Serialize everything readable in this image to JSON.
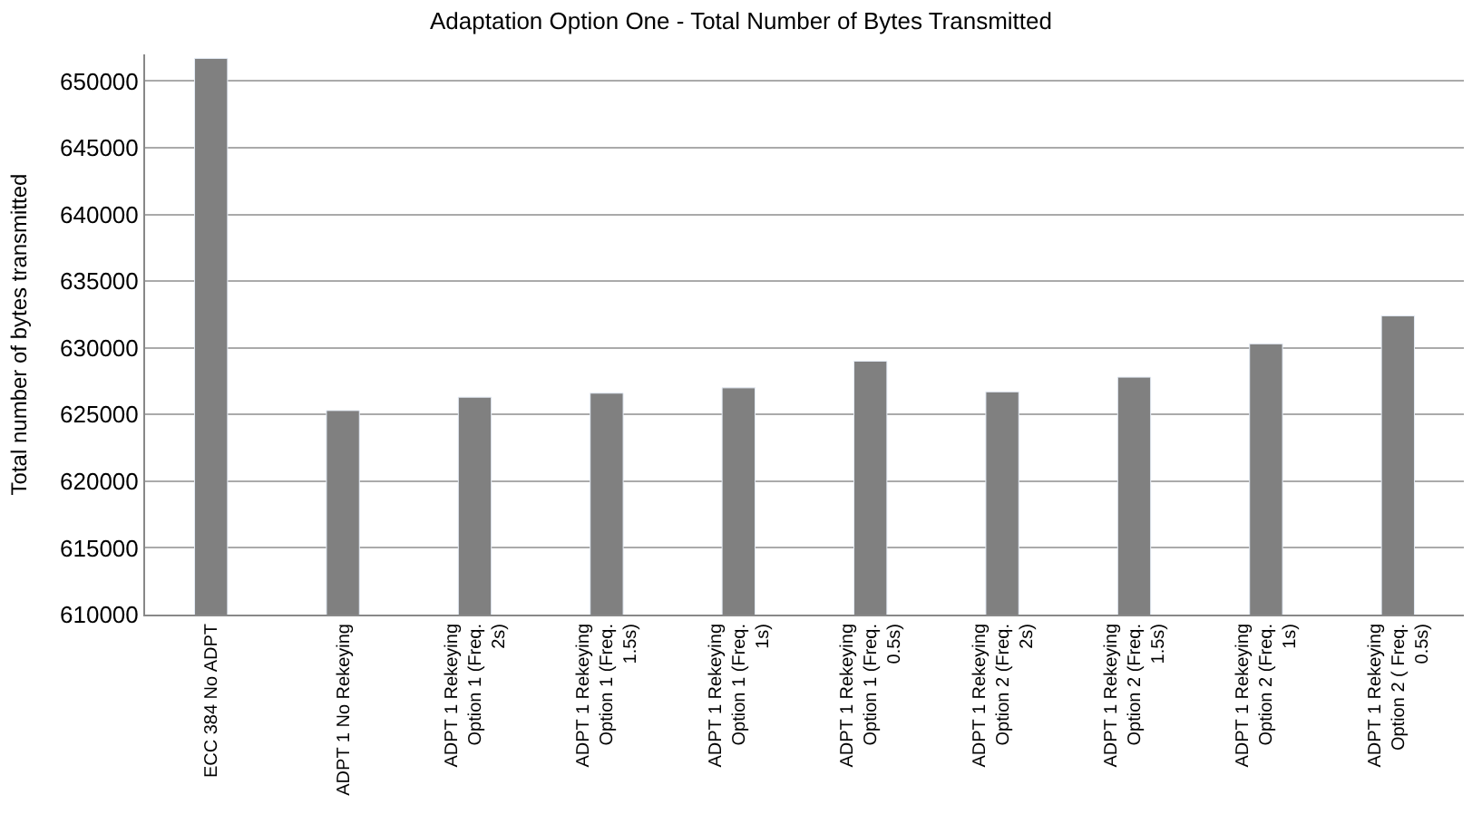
{
  "chart_data": {
    "type": "bar",
    "title": "Adaptation Option One - Total Number of Bytes Transmitted",
    "ylabel": "Total number of bytes transmitted",
    "categories": [
      "ECC 384 No ADPT",
      "ADPT 1 No Rekeying",
      "ADPT 1 Rekeying Option 1 (Freq. 2s)",
      "ADPT 1 Rekeying Option 1 (Freq. 1.5s)",
      "ADPT 1 Rekeying Option 1 (Freq. 1s)",
      "ADPT 1 Rekeying Option 1 (Freq. 0.5s)",
      "ADPT 1 Rekeying Option 2 (Freq. 2s)",
      "ADPT 1 Rekeying Option 2 (Freq. 1.5s)",
      "ADPT 1 Rekeying Option 2 (Freq. 1s)",
      "ADPT 1 Rekeying Option 2 ( Freq. 0.5s)"
    ],
    "values": [
      651700,
      625300,
      626300,
      626600,
      627000,
      629000,
      626700,
      627800,
      630300,
      632400
    ],
    "color": "#808080",
    "ylim": [
      610000,
      652000
    ],
    "yticks": [
      610000,
      615000,
      620000,
      625000,
      630000,
      635000,
      640000,
      645000,
      650000
    ],
    "grid": "y"
  }
}
